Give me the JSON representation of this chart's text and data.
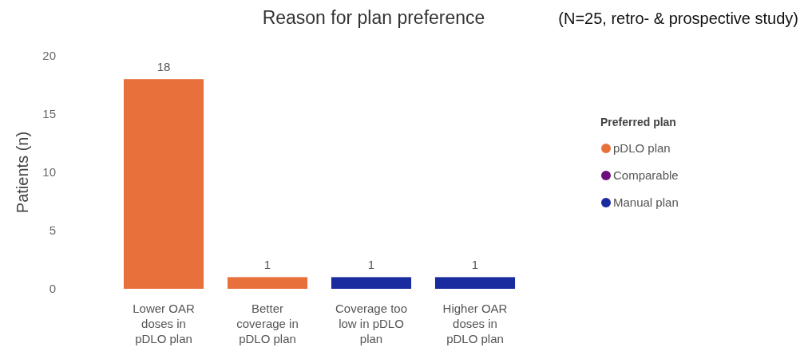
{
  "chart_data": {
    "type": "bar",
    "title": "Reason for plan preference",
    "subtitle": "(N=25, retro- & prospective study)",
    "ylabel": "Patients (n)",
    "legend_title": "Preferred plan",
    "categories": [
      "Lower OAR doses in pDLO plan",
      "Better coverage in pDLO plan",
      "Coverage too low in pDLO plan",
      "Higher OAR doses in pDLO plan"
    ],
    "series": [
      {
        "name": "pDLO plan",
        "color": "#e8703a",
        "values": [
          18,
          1,
          null,
          null
        ]
      },
      {
        "name": "Comparable",
        "color": "#6c0f7c",
        "values": [
          null,
          null,
          null,
          null
        ]
      },
      {
        "name": "Manual plan",
        "color": "#1a2ba0",
        "values": [
          null,
          null,
          1,
          1
        ]
      }
    ],
    "ylim": [
      0,
      20
    ],
    "yticks": [
      0,
      5,
      10,
      15,
      20
    ],
    "data_labels": true,
    "grid": false,
    "legend": "right"
  }
}
